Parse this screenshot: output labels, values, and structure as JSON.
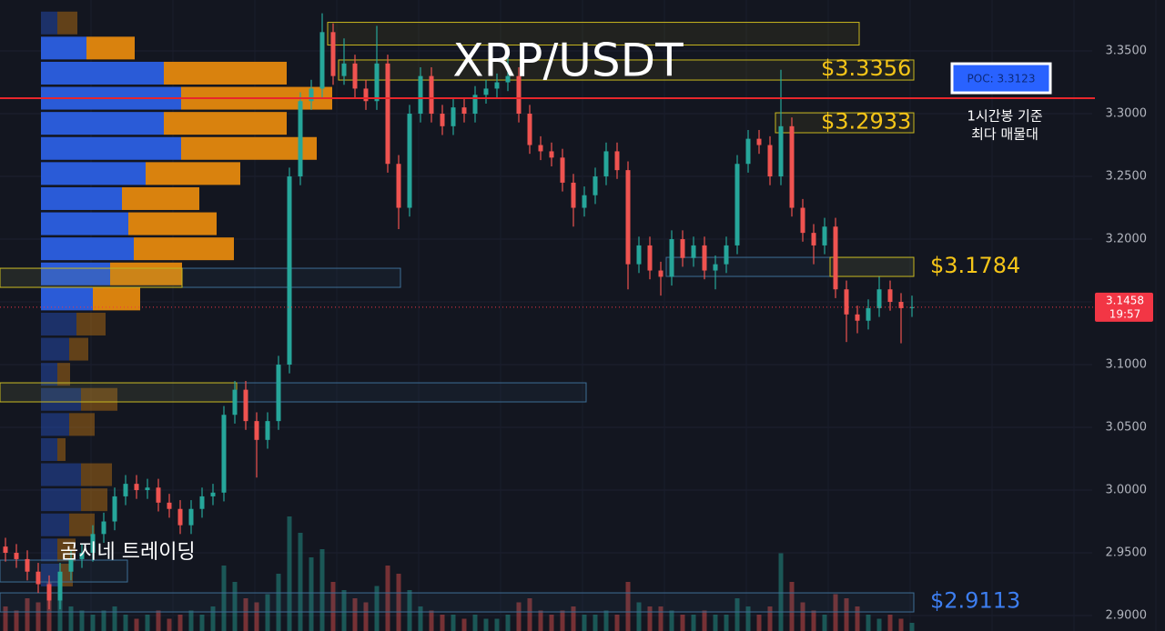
{
  "chart_data": {
    "type": "candlestick",
    "title": "XRP/USDT",
    "watermark": "곰지네 트레이딩",
    "ylim": [
      2.8877,
      3.3906
    ],
    "yticks": [
      {
        "value": 2.9,
        "label": "2.9000"
      },
      {
        "value": 2.95,
        "label": "2.9500"
      },
      {
        "value": 3.0,
        "label": "3.0000"
      },
      {
        "value": 3.05,
        "label": "3.0500"
      },
      {
        "value": 3.1,
        "label": "3.1000"
      },
      {
        "value": 3.15,
        "label": "3.1500"
      },
      {
        "value": 3.2,
        "label": "3.2000"
      },
      {
        "value": 3.25,
        "label": "3.2500"
      },
      {
        "value": 3.3,
        "label": "3.3000"
      },
      {
        "value": 3.35,
        "label": "3.3500"
      }
    ],
    "up_color": "#26a69a",
    "down_color": "#ef5350",
    "open": [
      2.955,
      2.95,
      2.945,
      2.935,
      2.925,
      2.912,
      2.935,
      2.945,
      2.95,
      2.965,
      2.975,
      2.995,
      3.005,
      3.0,
      3.002,
      2.99,
      2.985,
      2.972,
      2.985,
      2.995,
      2.998,
      3.06,
      3.08,
      3.055,
      3.04,
      3.055,
      3.1,
      3.25,
      3.31,
      3.32,
      3.365,
      3.33,
      3.34,
      3.32,
      3.31,
      3.34,
      3.26,
      3.225,
      3.3,
      3.33,
      3.3,
      3.29,
      3.305,
      3.3,
      3.315,
      3.32,
      3.325,
      3.33,
      3.3,
      3.275,
      3.27,
      3.265,
      3.245,
      3.225,
      3.235,
      3.25,
      3.27,
      3.255,
      3.18,
      3.195,
      3.175,
      3.17,
      3.2,
      3.185,
      3.195,
      3.175,
      3.18,
      3.195,
      3.26,
      3.28,
      3.275,
      3.25,
      3.29,
      3.225,
      3.205,
      3.195,
      3.21,
      3.16,
      3.14,
      3.135,
      3.145,
      3.16,
      3.15,
      3.145
    ],
    "high": [
      2.962,
      2.957,
      2.952,
      2.942,
      2.932,
      2.942,
      2.952,
      2.957,
      2.972,
      2.982,
      3.002,
      3.012,
      3.012,
      3.009,
      3.009,
      2.997,
      2.992,
      2.992,
      3.002,
      3.005,
      3.067,
      3.087,
      3.087,
      3.062,
      3.062,
      3.107,
      3.257,
      3.317,
      3.327,
      3.38,
      3.372,
      3.36,
      3.347,
      3.327,
      3.37,
      3.347,
      3.267,
      3.307,
      3.337,
      3.337,
      3.307,
      3.312,
      3.312,
      3.322,
      3.327,
      3.332,
      3.345,
      3.337,
      3.307,
      3.282,
      3.277,
      3.272,
      3.252,
      3.242,
      3.257,
      3.277,
      3.277,
      3.262,
      3.202,
      3.202,
      3.182,
      3.207,
      3.207,
      3.202,
      3.202,
      3.187,
      3.202,
      3.267,
      3.287,
      3.287,
      3.282,
      3.335,
      3.297,
      3.232,
      3.212,
      3.217,
      3.217,
      3.167,
      3.147,
      3.152,
      3.17,
      3.167,
      3.157,
      3.155
    ],
    "low": [
      2.943,
      2.938,
      2.928,
      2.918,
      2.905,
      2.905,
      2.928,
      2.938,
      2.943,
      2.958,
      2.968,
      2.988,
      2.993,
      2.993,
      2.983,
      2.978,
      2.965,
      2.965,
      2.978,
      2.988,
      2.991,
      3.053,
      3.048,
      3.01,
      3.033,
      3.048,
      3.093,
      3.243,
      3.303,
      3.313,
      3.323,
      3.323,
      3.313,
      3.303,
      3.303,
      3.253,
      3.208,
      3.218,
      3.293,
      3.293,
      3.283,
      3.283,
      3.293,
      3.293,
      3.308,
      3.313,
      3.318,
      3.293,
      3.268,
      3.263,
      3.258,
      3.238,
      3.21,
      3.218,
      3.228,
      3.243,
      3.248,
      3.16,
      3.173,
      3.168,
      3.155,
      3.163,
      3.178,
      3.178,
      3.168,
      3.16,
      3.173,
      3.188,
      3.253,
      3.268,
      3.243,
      3.243,
      3.218,
      3.198,
      3.18,
      3.188,
      3.153,
      3.118,
      3.125,
      3.128,
      3.138,
      3.143,
      3.117,
      3.138
    ],
    "close": [
      2.95,
      2.945,
      2.935,
      2.925,
      2.912,
      2.935,
      2.945,
      2.95,
      2.965,
      2.975,
      2.995,
      3.005,
      3.0,
      3.002,
      2.99,
      2.985,
      2.972,
      2.985,
      2.995,
      2.998,
      3.06,
      3.08,
      3.055,
      3.04,
      3.055,
      3.1,
      3.25,
      3.31,
      3.32,
      3.365,
      3.33,
      3.34,
      3.32,
      3.31,
      3.34,
      3.26,
      3.225,
      3.3,
      3.33,
      3.3,
      3.29,
      3.305,
      3.3,
      3.315,
      3.32,
      3.325,
      3.33,
      3.3,
      3.275,
      3.27,
      3.265,
      3.245,
      3.225,
      3.235,
      3.25,
      3.27,
      3.255,
      3.18,
      3.195,
      3.175,
      3.17,
      3.2,
      3.185,
      3.195,
      3.175,
      3.18,
      3.195,
      3.26,
      3.28,
      3.275,
      3.25,
      3.29,
      3.225,
      3.205,
      3.195,
      3.21,
      3.16,
      3.14,
      3.135,
      3.145,
      3.16,
      3.15,
      3.145,
      3.1458
    ],
    "vlim": [
      0,
      200
    ],
    "volume": [
      30,
      25,
      40,
      35,
      60,
      45,
      30,
      25,
      20,
      25,
      30,
      20,
      15,
      20,
      25,
      15,
      20,
      25,
      20,
      30,
      80,
      60,
      40,
      35,
      45,
      70,
      140,
      120,
      90,
      100,
      60,
      50,
      40,
      35,
      55,
      80,
      70,
      50,
      30,
      25,
      20,
      20,
      15,
      20,
      15,
      15,
      20,
      35,
      40,
      25,
      20,
      25,
      30,
      20,
      20,
      25,
      20,
      60,
      35,
      30,
      30,
      25,
      20,
      20,
      25,
      20,
      20,
      40,
      30,
      20,
      30,
      95,
      60,
      35,
      25,
      20,
      45,
      40,
      30,
      20,
      15,
      20,
      15,
      10
    ],
    "profile": {
      "levels": [
        3.3723,
        3.3523,
        3.3323,
        3.3123,
        3.2923,
        3.2723,
        3.2523,
        3.2323,
        3.2123,
        3.1923,
        3.1723,
        3.1523,
        3.1323,
        3.1123,
        3.0923,
        3.0723,
        3.0523,
        3.0323,
        3.0123,
        2.9923,
        2.9723,
        2.9523,
        2.9323
      ],
      "buy": [
        18,
        50,
        135,
        154,
        135,
        154,
        115,
        89,
        96,
        102,
        76,
        57,
        39,
        31,
        18,
        44,
        31,
        18,
        44,
        44,
        31,
        18,
        20
      ],
      "sell": [
        22,
        53,
        135,
        166,
        135,
        149,
        104,
        85,
        97,
        110,
        79,
        52,
        32,
        21,
        14,
        40,
        28,
        9,
        34,
        29,
        28,
        20,
        15
      ],
      "buy_color": "#2a5bd7",
      "sell_color": "#d9820e",
      "value_area": [
        3.14,
        3.36
      ]
    },
    "zones": [
      {
        "low": 3.3547,
        "high": 3.3728,
        "start": 30,
        "end": 78,
        "color": "#c9b81e"
      },
      {
        "low": 3.3268,
        "high": 3.3428,
        "start": 31,
        "end": 83,
        "color": "#c9b81e"
      },
      {
        "low": 3.2848,
        "high": 3.3007,
        "start": 71,
        "end": 83,
        "color": "#c9b81e"
      },
      {
        "low": 3.1703,
        "high": 3.1855,
        "start": 61,
        "end": 83,
        "color": "#3e6e96"
      },
      {
        "low": 3.1703,
        "high": 3.1855,
        "start": 76,
        "end": 83,
        "color": "#c9b81e"
      },
      {
        "low": 3.1616,
        "high": 3.1768,
        "start": 0,
        "end": 36,
        "color": "#3e6e96"
      },
      {
        "low": 3.1616,
        "high": 3.1768,
        "start": 0,
        "end": 16,
        "color": "#c9b81e"
      },
      {
        "low": 3.0703,
        "high": 3.0855,
        "start": 0,
        "end": 53,
        "color": "#3e6e96"
      },
      {
        "low": 3.0703,
        "high": 3.0855,
        "start": 0,
        "end": 21,
        "color": "#c9b81e"
      },
      {
        "low": 2.9268,
        "high": 2.9442,
        "start": 0,
        "end": 11,
        "color": "#3e6e96"
      },
      {
        "low": 2.9029,
        "high": 2.9181,
        "start": 0,
        "end": 83,
        "color": "#3e6e96"
      }
    ],
    "levels": [
      {
        "value": 3.3356,
        "label": "$3.3356",
        "color": "#f5c518",
        "at": 74
      },
      {
        "value": 3.2933,
        "label": "$3.2933",
        "color": "#f5c518",
        "at": 74
      },
      {
        "value": 3.1784,
        "label": "$3.1784",
        "color": "#f5c518",
        "at": 84
      },
      {
        "value": 2.9113,
        "label": "$2.9113",
        "color": "#3d7ef0",
        "at": 84
      }
    ],
    "poc": {
      "value": 3.3123,
      "label": "POC: 3.3123",
      "note": [
        "1시간봉 기준",
        "최다 매물대"
      ],
      "color": "#e8262b"
    },
    "last": {
      "value": 3.1458,
      "label": "3.1458",
      "time": "19:57",
      "color": "#f23645"
    }
  }
}
